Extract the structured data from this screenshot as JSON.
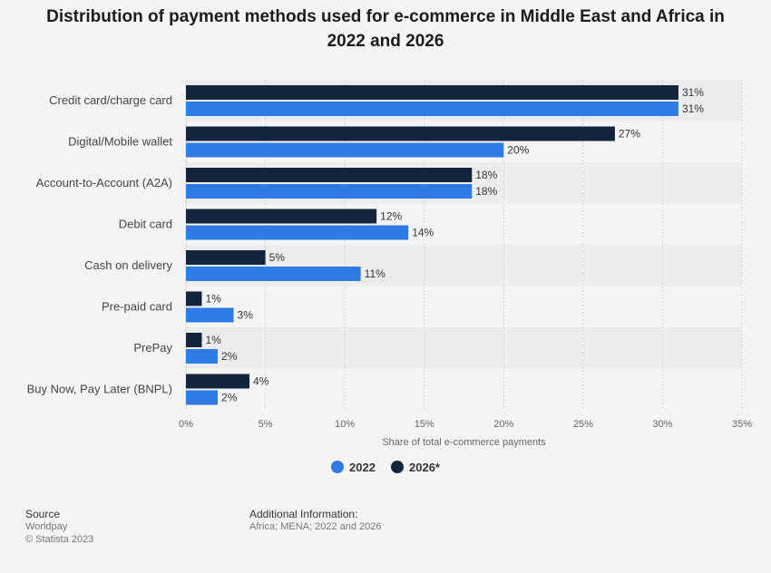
{
  "chart_data": {
    "type": "bar",
    "orientation": "horizontal",
    "title": "Distribution of payment methods used for e-commerce in Middle East and Africa in 2022 and 2026",
    "xlabel": "Share of total e-commerce payments",
    "ylabel": "",
    "categories": [
      "Credit card/charge card",
      "Digital/Mobile wallet",
      "Account-to-Account (A2A)",
      "Debit card",
      "Cash on delivery",
      "Pre-paid card",
      "PrePay",
      "Buy Now, Pay Later (BNPL)"
    ],
    "series": [
      {
        "name": "2026*",
        "color": "#15243d",
        "values": [
          31,
          27,
          18,
          12,
          5,
          1,
          1,
          4
        ],
        "labels": [
          "31%",
          "27%",
          "18%",
          "12%",
          "5%",
          "1%",
          "1%",
          "4%"
        ]
      },
      {
        "name": "2022",
        "color": "#2f7ae5",
        "values": [
          31,
          20,
          18,
          14,
          11,
          3,
          2,
          2
        ],
        "labels": [
          "31%",
          "20%",
          "18%",
          "14%",
          "11%",
          "3%",
          "2%",
          "2%"
        ]
      }
    ],
    "xlim": [
      0,
      35
    ],
    "ticks": [
      0,
      5,
      10,
      15,
      20,
      25,
      30,
      35
    ],
    "tick_labels": [
      "0%",
      "5%",
      "10%",
      "15%",
      "20%",
      "25%",
      "30%",
      "35%"
    ],
    "grid": true,
    "legend": {
      "position": "bottom-center",
      "items": [
        {
          "name": "2022",
          "color": "#2f7ae5"
        },
        {
          "name": "2026*",
          "color": "#15243d"
        }
      ]
    }
  },
  "footer": {
    "source_heading": "Source",
    "source_lines": [
      "Worldpay",
      "© Statista 2023"
    ],
    "info_heading": "Additional Information:",
    "info_text": "Africa; MENA; 2022 and 2026"
  }
}
